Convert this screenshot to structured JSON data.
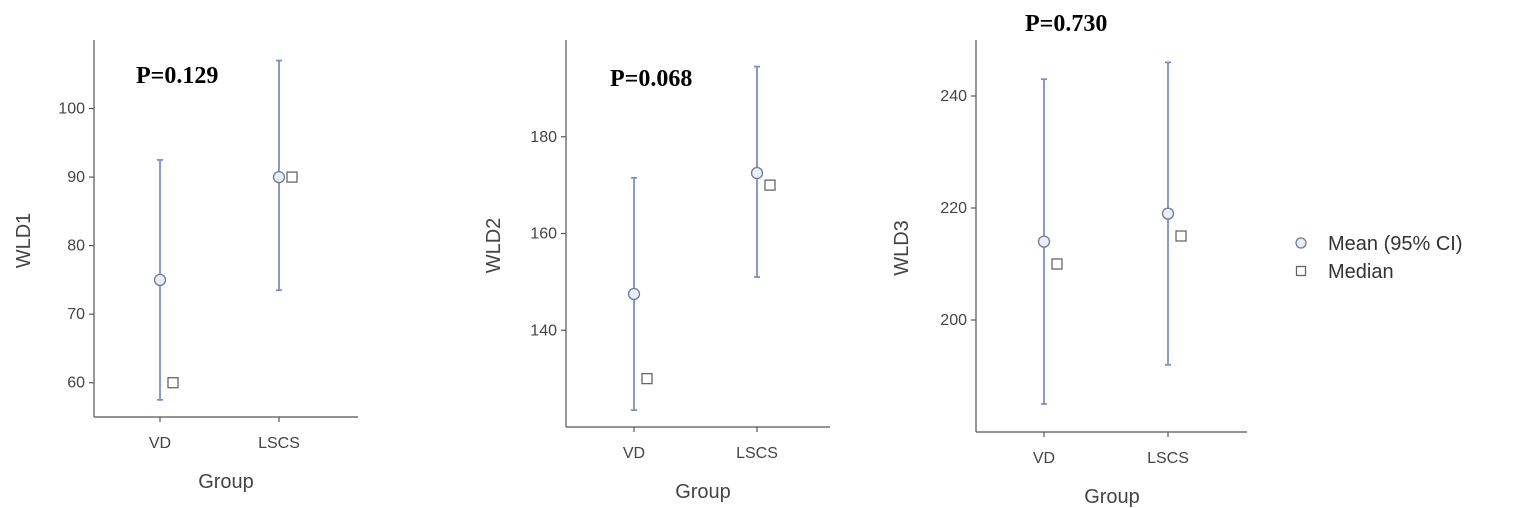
{
  "legend": {
    "mean_label": "Mean (95% CI)",
    "median_label": "Median"
  },
  "colors": {
    "ci": "#7f8fc4",
    "mean_fill": "#e9eef8",
    "mean_stroke": "#6f7a92",
    "median_stroke": "#666666",
    "axis": "#555555"
  },
  "chart_data": [
    {
      "type": "scatter",
      "annotation": "P=0.129",
      "xlabel": "Group",
      "ylabel": "WLD1",
      "categories": [
        "VD",
        "LSCS"
      ],
      "yticks": [
        60,
        70,
        80,
        90,
        100
      ],
      "ylim": [
        55,
        110
      ],
      "mean": [
        75,
        90
      ],
      "ci_low": [
        57.5,
        73.5
      ],
      "ci_high": [
        92.5,
        107
      ],
      "median": [
        60,
        90
      ]
    },
    {
      "type": "scatter",
      "annotation": "P=0.068",
      "xlabel": "Group",
      "ylabel": "WLD2",
      "categories": [
        "VD",
        "LSCS"
      ],
      "yticks": [
        140,
        160,
        180
      ],
      "ylim": [
        120,
        200
      ],
      "mean": [
        147.5,
        172.5
      ],
      "ci_low": [
        123.5,
        151
      ],
      "ci_high": [
        171.5,
        194.5
      ],
      "median": [
        130,
        170
      ]
    },
    {
      "type": "scatter",
      "annotation": "P=0.730",
      "xlabel": "Group",
      "ylabel": "WLD3",
      "categories": [
        "VD",
        "LSCS"
      ],
      "yticks": [
        200,
        220,
        240
      ],
      "ylim": [
        180,
        250
      ],
      "mean": [
        214,
        219
      ],
      "ci_low": [
        185,
        192
      ],
      "ci_high": [
        243,
        246
      ],
      "median": [
        210,
        215
      ]
    }
  ]
}
